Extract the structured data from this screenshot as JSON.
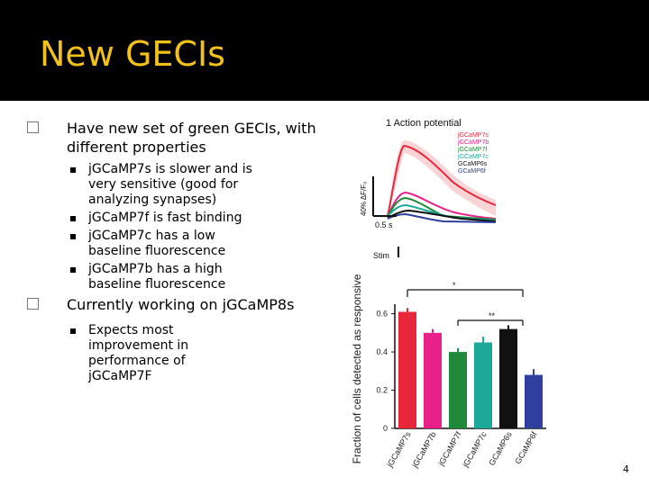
{
  "slide": {
    "title": "New GECIs",
    "page_number": "4",
    "bullets": [
      {
        "text": "Have new set of green GECIs, with different properties",
        "sub": [
          "jGCaMP7s is slower and is very sensitive (good for analyzing synapses)",
          "jGCaMP7f is fast binding",
          "jGCaMP7c has a low baseline fluorescence",
          "jGCaMP7b has a high baseline fluorescence"
        ]
      },
      {
        "text": "Currently working on jGCaMP8s",
        "sub": [
          "Expects most improvement in performance of jGCaMP7F"
        ]
      }
    ]
  },
  "colors": {
    "title": "#f2c21b",
    "series": [
      "#e8283a",
      "#e8208a",
      "#1f8a3a",
      "#1ea89a",
      "#111111",
      "#2e3f9e"
    ]
  },
  "chart_data": [
    {
      "type": "line",
      "title": "1 Action potential",
      "legend": [
        "jGCaMP7s",
        "jGCaMP7b",
        "jGCaMP7f",
        "jGCaMP7c",
        "GCaMP6s",
        "GCaMP6f"
      ],
      "scale_bar_y": "40% ΔF/F₀",
      "scale_bar_x": "0.5 s",
      "stim_label": "Stim",
      "legend_placement": "top-right"
    },
    {
      "type": "bar",
      "ylabel": "Fraction of cells detected as responsive",
      "categories": [
        "jGCaMP7s",
        "jGCaMP7b",
        "jGCaMP7f",
        "jGCaMP7c",
        "GCaMP6s",
        "GCaMP6f"
      ],
      "values": [
        0.61,
        0.5,
        0.4,
        0.45,
        0.52,
        0.28
      ],
      "errors": [
        0.02,
        0.02,
        0.02,
        0.03,
        0.02,
        0.03
      ],
      "ylim": [
        0,
        0.65
      ],
      "yticks": [
        "0",
        "0.2",
        "0.4",
        "0.6"
      ],
      "significance": [
        "*",
        "**"
      ]
    }
  ]
}
